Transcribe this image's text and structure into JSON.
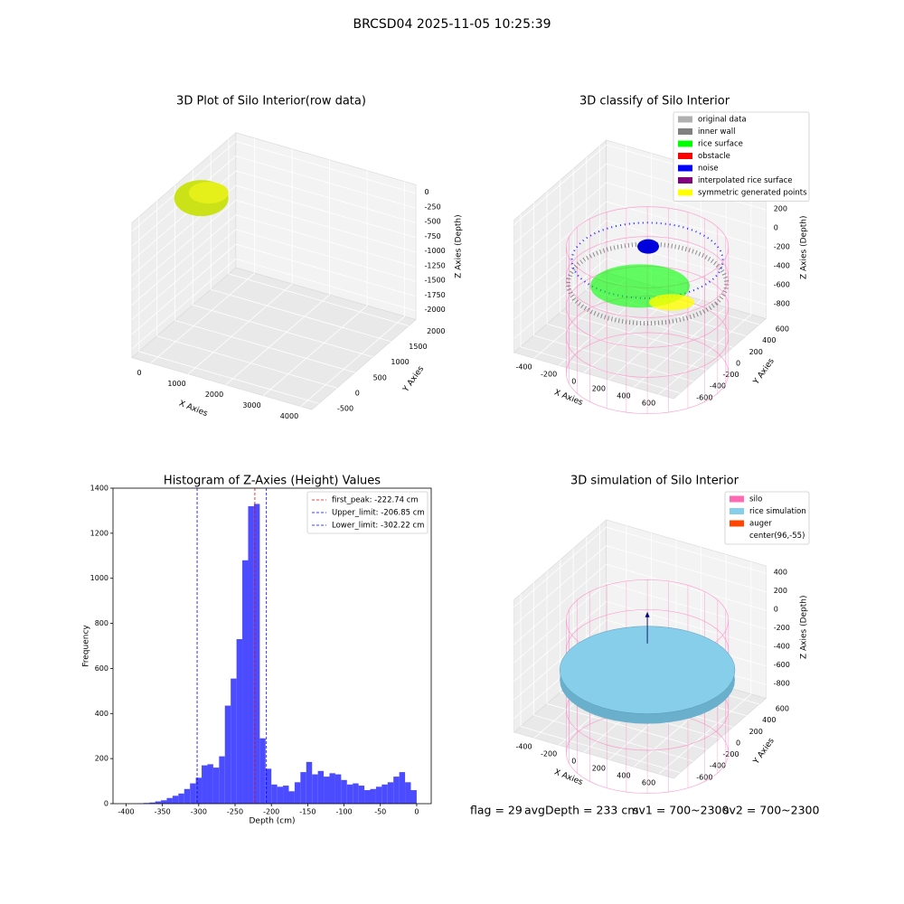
{
  "title": "BRCSD04 2025-11-05 10:25:39",
  "chart_data": [
    {
      "type": "scatter3d",
      "title": "3D Plot of Silo Interior(row data)",
      "xlabel": "X Axies",
      "ylabel": "Y Axies",
      "zlabel": "Z Axies (Depth)",
      "xlim": [
        -500,
        4300
      ],
      "ylim": [
        -700,
        2200
      ],
      "zlim": [
        -2150,
        150
      ],
      "xticks": [
        0,
        1000,
        2000,
        3000,
        4000
      ],
      "yticks": [
        -500,
        0,
        500,
        1000,
        1500,
        2000
      ],
      "zticks": [
        0,
        -250,
        -500,
        -750,
        -1000,
        -1250,
        -1500,
        -1750,
        -2000
      ],
      "grid": true
    },
    {
      "type": "scatter3d",
      "title": "3D classify of Silo Interior",
      "xlabel": "X Axies",
      "ylabel": "Y Axies",
      "zlabel": "Z Axies (Depth)",
      "xlim": [
        -560,
        720
      ],
      "ylim": [
        -700,
        700
      ],
      "zlim": [
        -950,
        450
      ],
      "xticks": [
        -400,
        -200,
        0,
        200,
        400,
        600
      ],
      "yticks": [
        -600,
        -400,
        -200,
        0,
        200,
        400,
        600
      ],
      "zticks": [
        -800,
        -600,
        -400,
        -200,
        0,
        200,
        400
      ],
      "grid": true,
      "legend": "upper right",
      "legend_entries": [
        {
          "name": "original data",
          "color": "#b0b0b0"
        },
        {
          "name": "inner wall",
          "color": "#808080"
        },
        {
          "name": "rice surface",
          "color": "#00ff00"
        },
        {
          "name": "obstacle",
          "color": "#ff0000"
        },
        {
          "name": "noise",
          "color": "#0000ff"
        },
        {
          "name": "interpolated rice surface",
          "color": "#800080"
        },
        {
          "name": "symmetric generated points",
          "color": "#ffff00"
        }
      ]
    },
    {
      "type": "histogram",
      "title": "Histogram of Z-Axies (Height) Values",
      "xlabel": "Depth (cm)",
      "ylabel": "Frequency",
      "color": "#4b4bff",
      "bins": [
        -384,
        -376,
        -368,
        -360,
        -352,
        -344,
        -336,
        -328,
        -320,
        -312,
        -304,
        -296,
        -288,
        -280,
        -272,
        -264,
        -256,
        -248,
        -240,
        -232,
        -224,
        -216,
        -208,
        -200,
        -192,
        -184,
        -176,
        -168,
        -160,
        -152,
        -144,
        -136,
        -128,
        -120,
        -112,
        -104,
        -96,
        -88,
        -80,
        -72,
        -64,
        -56,
        -48,
        -40,
        -32,
        -24,
        -16,
        -8,
        0
      ],
      "values": [
        1,
        3,
        5,
        10,
        15,
        25,
        35,
        45,
        65,
        90,
        115,
        170,
        175,
        160,
        210,
        435,
        555,
        730,
        1080,
        1320,
        1330,
        290,
        155,
        85,
        75,
        80,
        55,
        95,
        140,
        185,
        130,
        145,
        120,
        135,
        130,
        105,
        85,
        90,
        80,
        60,
        65,
        75,
        85,
        95,
        120,
        140,
        95,
        60
      ],
      "xlim": [
        -418,
        20
      ],
      "ylim": [
        0,
        1400
      ],
      "xticks": [
        -400,
        -350,
        -300,
        -250,
        -200,
        -150,
        -100,
        -50,
        0
      ],
      "yticks": [
        0,
        200,
        400,
        600,
        800,
        1000,
        1200,
        1400
      ],
      "legend": "upper right",
      "lines": [
        {
          "label": "first_peak: -222.74 cm",
          "value": -222.74,
          "color": "#ff0000"
        },
        {
          "label": "Upper_limit: -206.85 cm",
          "value": -206.85,
          "color": "#0000ff"
        },
        {
          "label": "Lower_limit: -302.22 cm",
          "value": -302.22,
          "color": "#0000ff"
        }
      ]
    },
    {
      "type": "surface3d",
      "title": "3D simulation of Silo Interior",
      "xlabel": "X Axies",
      "ylabel": "Y Axies",
      "zlabel": "Z Axies (Depth)",
      "xlim": [
        -560,
        720
      ],
      "ylim": [
        -700,
        700
      ],
      "zlim": [
        -950,
        480
      ],
      "xticks": [
        -400,
        -200,
        0,
        200,
        400,
        600
      ],
      "yticks": [
        -600,
        -400,
        -200,
        0,
        200,
        400,
        600
      ],
      "zticks": [
        -800,
        -600,
        -400,
        -200,
        0,
        200,
        400
      ],
      "grid": true,
      "legend": "upper right",
      "legend_entries": [
        {
          "name": "silo",
          "color": "#ff69b4"
        },
        {
          "name": "rice simulation",
          "color": "#87ceeb"
        },
        {
          "name": "auger",
          "color": "#ff4500"
        },
        {
          "name": "center(96,-55)",
          "color": "#ffffff"
        }
      ]
    }
  ],
  "status": [
    "flag = 29",
    "avgDepth = 233 cm",
    "sv1 = 700~2300",
    "sv2 = 700~2300"
  ]
}
